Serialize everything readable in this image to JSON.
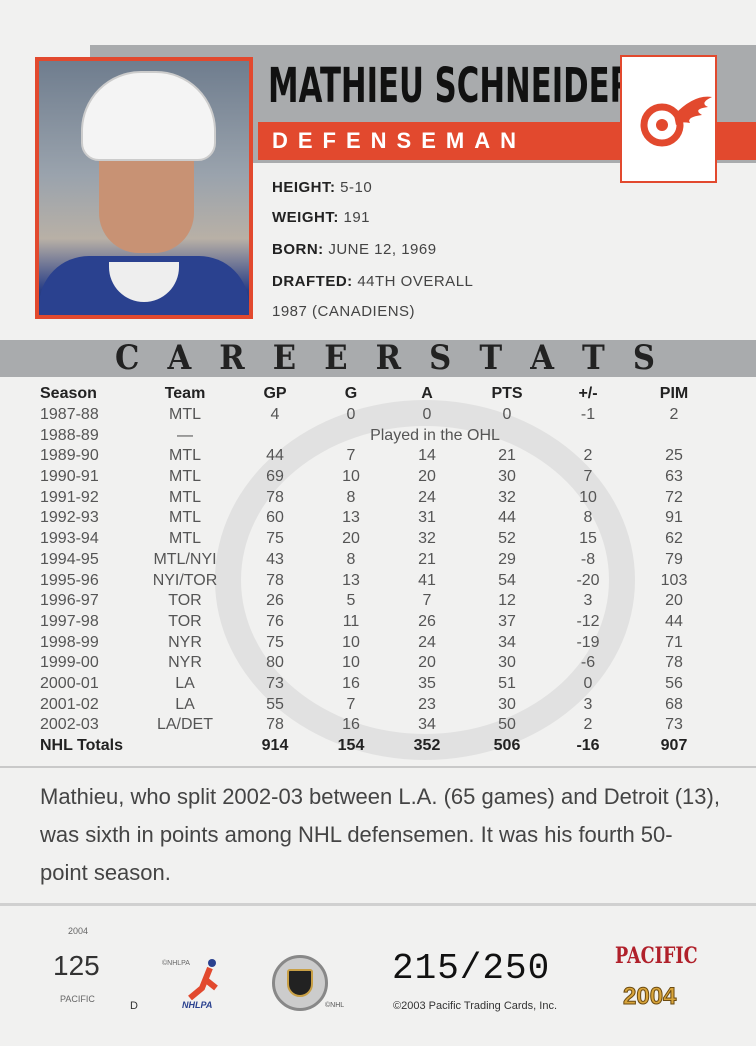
{
  "player": {
    "name": "MATHIEU SCHNEIDER",
    "position": "DEFENSEMAN",
    "team_logo": "red-wings-logo"
  },
  "bio": [
    {
      "label": "HEIGHT:",
      "value": "5-10"
    },
    {
      "label": "WEIGHT:",
      "value": "191"
    },
    {
      "label": "BORN:",
      "value": "JUNE 12, 1969"
    },
    {
      "label": "DRAFTED:",
      "value": "44TH OVERALL"
    },
    {
      "label": "",
      "value": "1987 (CANADIENS)"
    }
  ],
  "stats_title": [
    "C",
    "A",
    "R",
    "E",
    "E",
    "R",
    "S",
    "T",
    "A",
    "T",
    "S"
  ],
  "stats": {
    "headers": [
      "Season",
      "Team",
      "GP",
      "G",
      "A",
      "PTS",
      "+/-",
      "PIM"
    ],
    "rows": [
      [
        "1987-88",
        "MTL",
        "4",
        "0",
        "0",
        "0",
        "-1",
        "2"
      ],
      [
        "1988-89",
        "—",
        "",
        "",
        "",
        "",
        "",
        ""
      ],
      [
        "1989-90",
        "MTL",
        "44",
        "7",
        "14",
        "21",
        "2",
        "25"
      ],
      [
        "1990-91",
        "MTL",
        "69",
        "10",
        "20",
        "30",
        "7",
        "63"
      ],
      [
        "1991-92",
        "MTL",
        "78",
        "8",
        "24",
        "32",
        "10",
        "72"
      ],
      [
        "1992-93",
        "MTL",
        "60",
        "13",
        "31",
        "44",
        "8",
        "91"
      ],
      [
        "1993-94",
        "MTL",
        "75",
        "20",
        "32",
        "52",
        "15",
        "62"
      ],
      [
        "1994-95",
        "MTL/NYI",
        "43",
        "8",
        "21",
        "29",
        "-8",
        "79"
      ],
      [
        "1995-96",
        "NYI/TOR",
        "78",
        "13",
        "41",
        "54",
        "-20",
        "103"
      ],
      [
        "1996-97",
        "TOR",
        "26",
        "5",
        "7",
        "12",
        "3",
        "20"
      ],
      [
        "1997-98",
        "TOR",
        "76",
        "11",
        "26",
        "37",
        "-12",
        "44"
      ],
      [
        "1998-99",
        "NYR",
        "75",
        "10",
        "24",
        "34",
        "-19",
        "71"
      ],
      [
        "1999-00",
        "NYR",
        "80",
        "10",
        "20",
        "30",
        "-6",
        "78"
      ],
      [
        "2000-01",
        "LA",
        "73",
        "16",
        "35",
        "51",
        "0",
        "56"
      ],
      [
        "2001-02",
        "LA",
        "55",
        "7",
        "23",
        "30",
        "3",
        "68"
      ],
      [
        "2002-03",
        "LA/DET",
        "78",
        "16",
        "34",
        "50",
        "2",
        "73"
      ]
    ],
    "ohl_note": "Played in the OHL",
    "totals": [
      "NHL Totals",
      "",
      "914",
      "154",
      "352",
      "506",
      "-16",
      "907"
    ]
  },
  "blurb": "Mathieu, who split 2002-03 between L.A. (65 games) and Detroit (13), was sixth in points among NHL defensemen. It was his fourth 50-point season.",
  "footer": {
    "year": "2004",
    "card_number": "125",
    "pacific_small": "PACIFIC",
    "d": "D",
    "nhlpa_top": "©NHLPA",
    "nhlpa": "NHLPA",
    "nhl": "©NHL",
    "serial": "215/250",
    "copyright": "©2003 Pacific Trading Cards, Inc.",
    "brand": "PACIFIC",
    "brand_year": "2004"
  }
}
